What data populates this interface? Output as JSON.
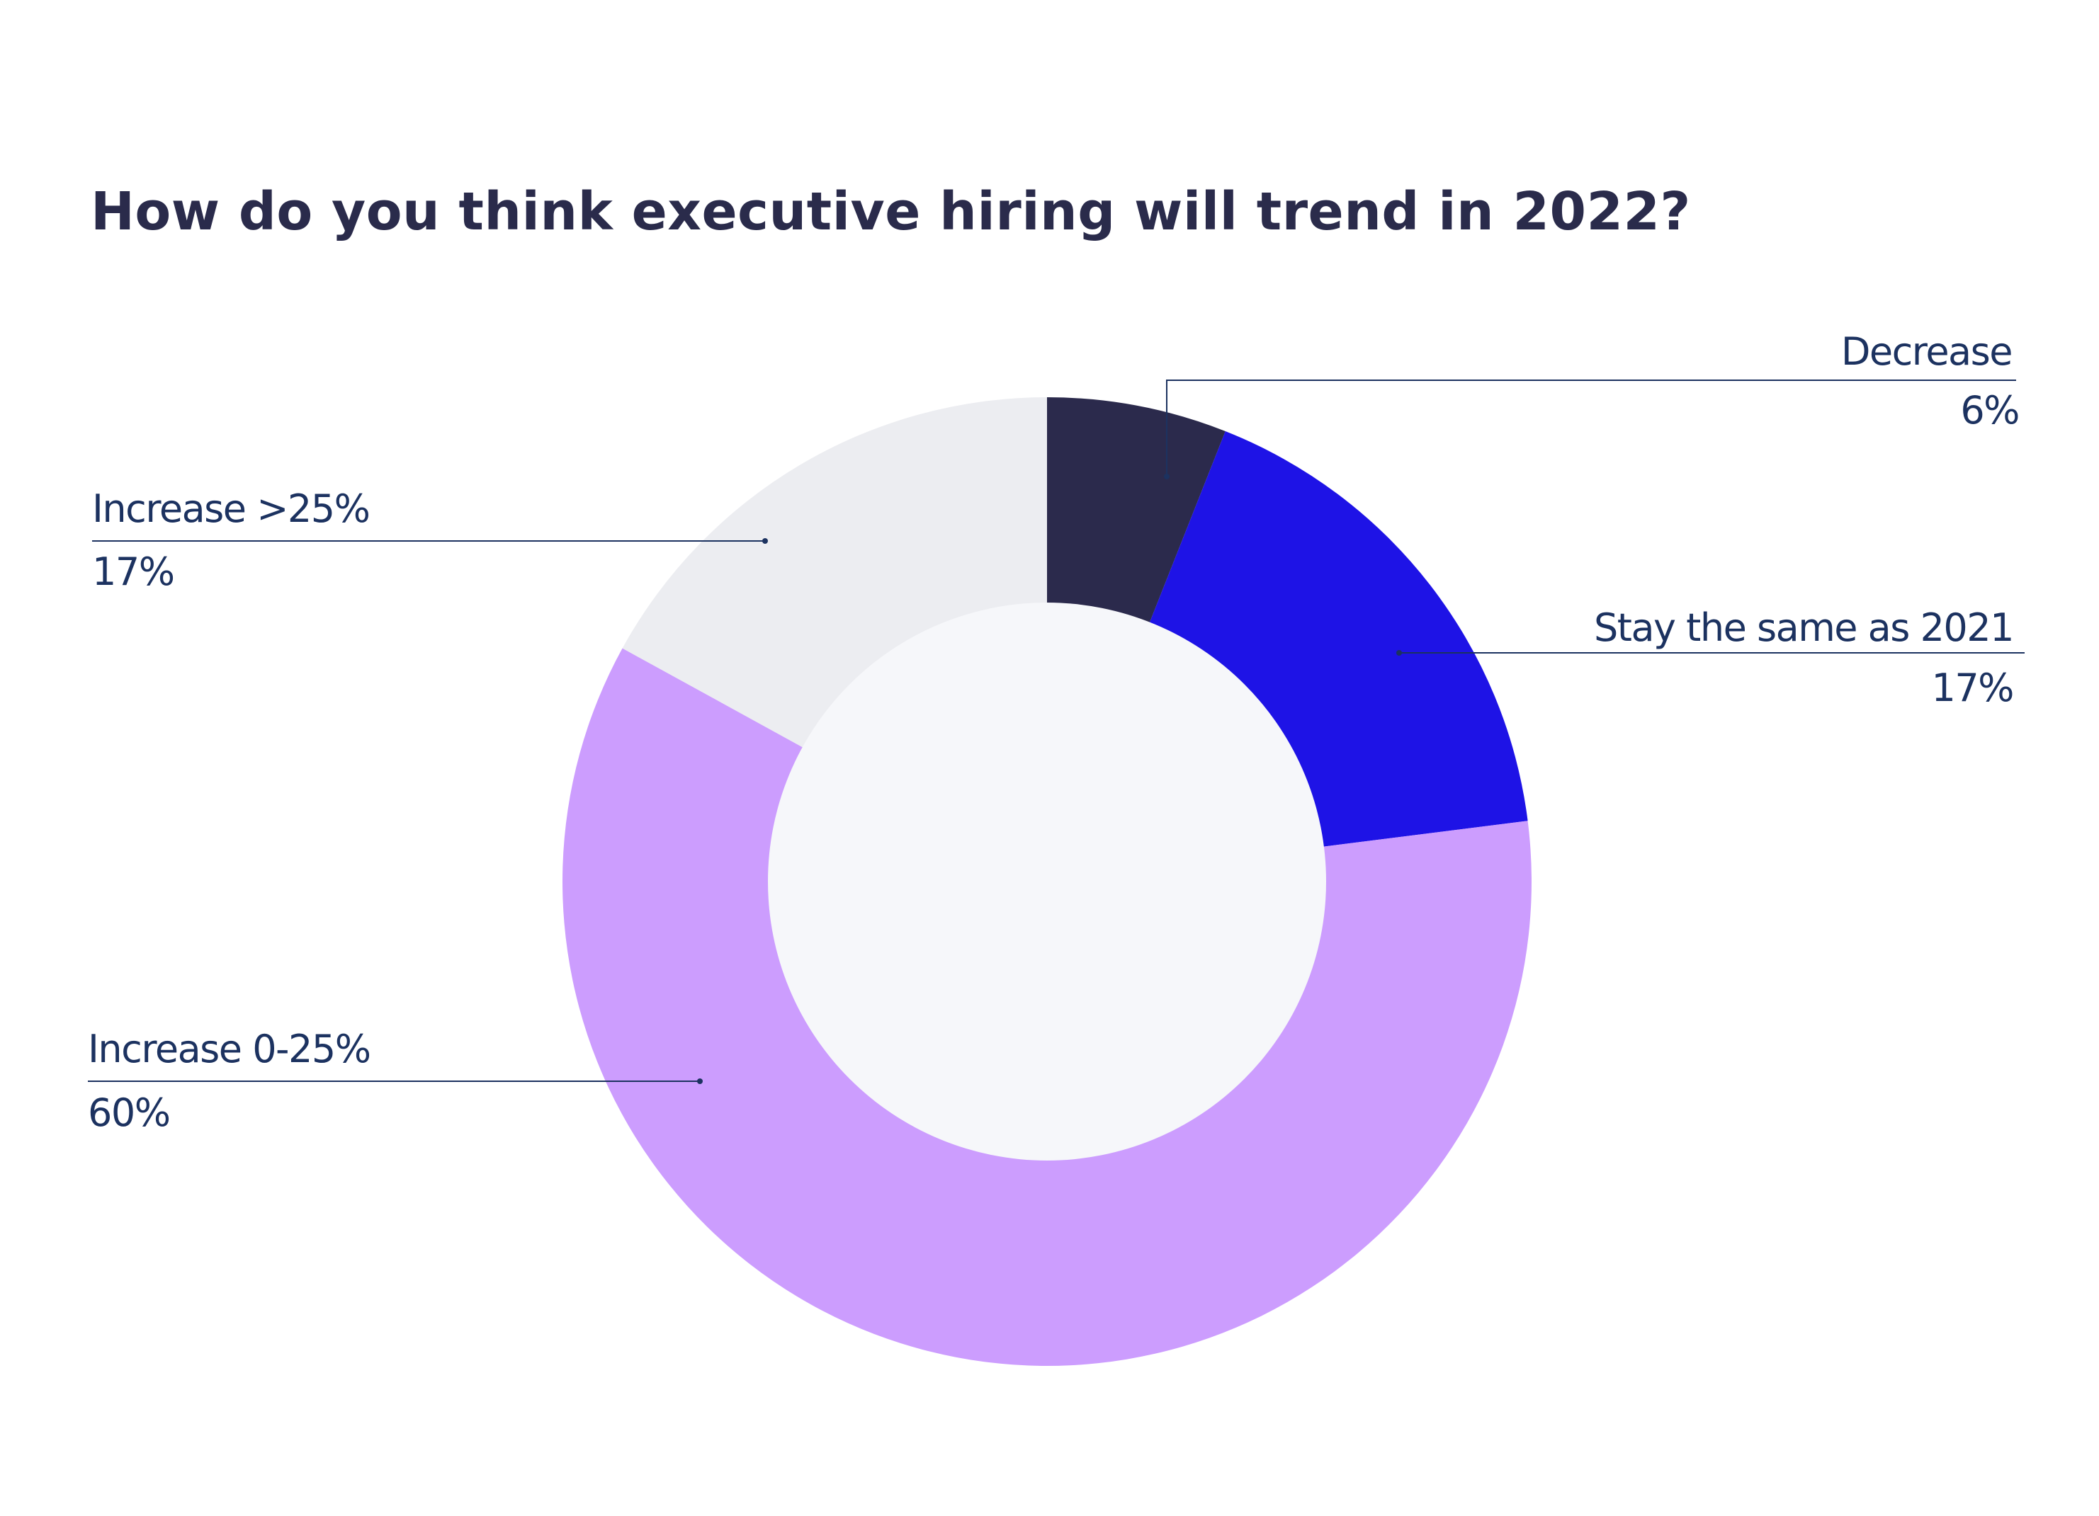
{
  "chart_data": {
    "type": "pie",
    "title": "How do you think executive hiring will trend in 2022?",
    "donut": true,
    "slices": [
      {
        "label": "Decrease",
        "value": 6,
        "value_label": "6%",
        "color": "#2b2a4c"
      },
      {
        "label": "Stay the same as 2021",
        "value": 17,
        "value_label": "17%",
        "color": "#1e13e6"
      },
      {
        "label": "Increase 0-25%",
        "value": 60,
        "value_label": "60%",
        "color": "#cc9dfe"
      },
      {
        "label": "Increase >25%",
        "value": 17,
        "value_label": "17%",
        "color": "#ecedf1"
      }
    ],
    "center_color": "#f6f7fa",
    "label_color": "#1c3260",
    "title_color": "#2a2b4b"
  }
}
